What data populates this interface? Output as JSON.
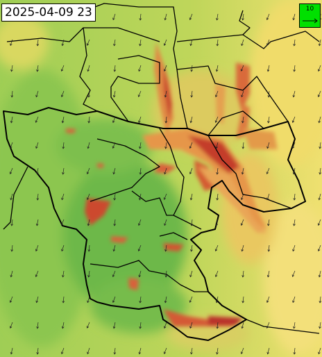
{
  "timestamp": "2025-04-09 23",
  "legend": {
    "label": "10"
  }
}
